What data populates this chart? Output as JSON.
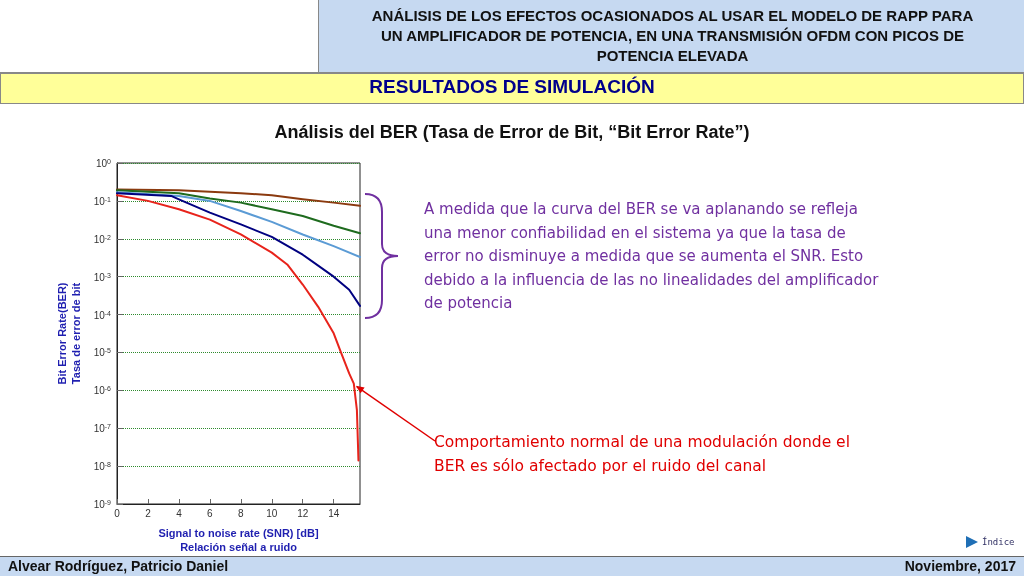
{
  "chart_data": {
    "type": "line",
    "title": "Análisis del BER (Tasa de Error de Bit, “Bit Error Rate”)",
    "xlabel": "Signal to noise rate (SNR) [dB]\nRelación señal a ruido",
    "ylabel": "Bit Error Rate(BER)\nTasa de error de bit",
    "annotations": [
      "ANÁLISIS DE LOS EFECTOS OCASIONADOS AL USAR EL MODELO DE RAPP PARA UN AMPLIFICADOR DE POTENCIA, EN UNA TRANSMISIÓN OFDM CON PICOS DE POTENCIA ELEVADA",
      "RESULTADOS DE SIMULACIÓN",
      "A medida que la curva del BER se va aplanando se refleja una menor confiabilidad en el sistema ya que la tasa de error no disminuye a medida que se aumenta el SNR. Esto debido a la influencia de las no linealidades del amplificador de potencia",
      {
        "text": "Comportamiento normal de una modulación donde el BER es sólo afectado por el ruido del canal",
        "x": 15.3,
        "y": 1.5e-06
      },
      "Alvear Rodríguez, Patricio Daniel",
      "Noviembre, 2017",
      "Índice"
    ],
    "log": "y",
    "grid": "y",
    "marker": "none",
    "line_style": "solid",
    "xlim": [
      0,
      15.7
    ],
    "xticks": [
      0,
      2,
      4,
      6,
      8,
      10,
      12,
      14
    ],
    "ylim": [
      1e-09,
      1
    ],
    "yticks": [
      {
        "value": 1,
        "label": "10$^{0}$"
      },
      {
        "value": 0.1,
        "label": "10$^{-1}$"
      },
      {
        "value": 0.01,
        "label": "10$^{-2}$"
      },
      {
        "value": 0.001,
        "label": "10$^{-3}$"
      },
      {
        "value": 0.0001,
        "label": "10$^{-4}$"
      },
      {
        "value": 1e-05,
        "label": "10$^{-5}$"
      },
      {
        "value": 1e-06,
        "label": "10$^{-6}$"
      },
      {
        "value": 1e-07,
        "label": "10$^{-7}$"
      },
      {
        "value": 1e-08,
        "label": "10$^{-8}$"
      },
      {
        "value": 1e-09,
        "label": "10$^{-9}$"
      }
    ],
    "series": [
      {
        "color": "#8b3a0f",
        "x": [
          0,
          4,
          8,
          10,
          12,
          14,
          15.7
        ],
        "values": [
          0.2,
          0.19,
          0.16,
          0.14,
          0.11,
          0.09,
          0.074
        ]
      },
      {
        "color": "#1e6b1e",
        "x": [
          0,
          4,
          6,
          8,
          10,
          12,
          14,
          15.7
        ],
        "values": [
          0.19,
          0.16,
          0.115,
          0.09,
          0.06,
          0.04,
          0.022,
          0.014
        ]
      },
      {
        "color": "#5b9bd5",
        "x": [
          0,
          4,
          6,
          8,
          10,
          12,
          14,
          15.7
        ],
        "values": [
          0.17,
          0.135,
          0.1,
          0.054,
          0.028,
          0.013,
          0.0064,
          0.0033
        ]
      },
      {
        "color": "#000080",
        "x": [
          0,
          3.5,
          4,
          6,
          8,
          10,
          12,
          14,
          15,
          15.7
        ],
        "values": [
          0.16,
          0.135,
          0.11,
          0.049,
          0.024,
          0.0112,
          0.0038,
          0.001,
          0.00045,
          0.00017
        ]
      },
      {
        "color": "#e8231b",
        "x": [
          0,
          2,
          4,
          6,
          8,
          10,
          11,
          12,
          13,
          14,
          14.5,
          15,
          15.3,
          15.5,
          15.6
        ],
        "values": [
          0.14,
          0.1,
          0.06,
          0.032,
          0.013,
          0.0043,
          0.0021,
          0.00062,
          0.00016,
          3.2e-05,
          9.3e-06,
          2.8e-06,
          1.5e-06,
          3e-07,
          1.4e-08
        ]
      }
    ]
  }
}
